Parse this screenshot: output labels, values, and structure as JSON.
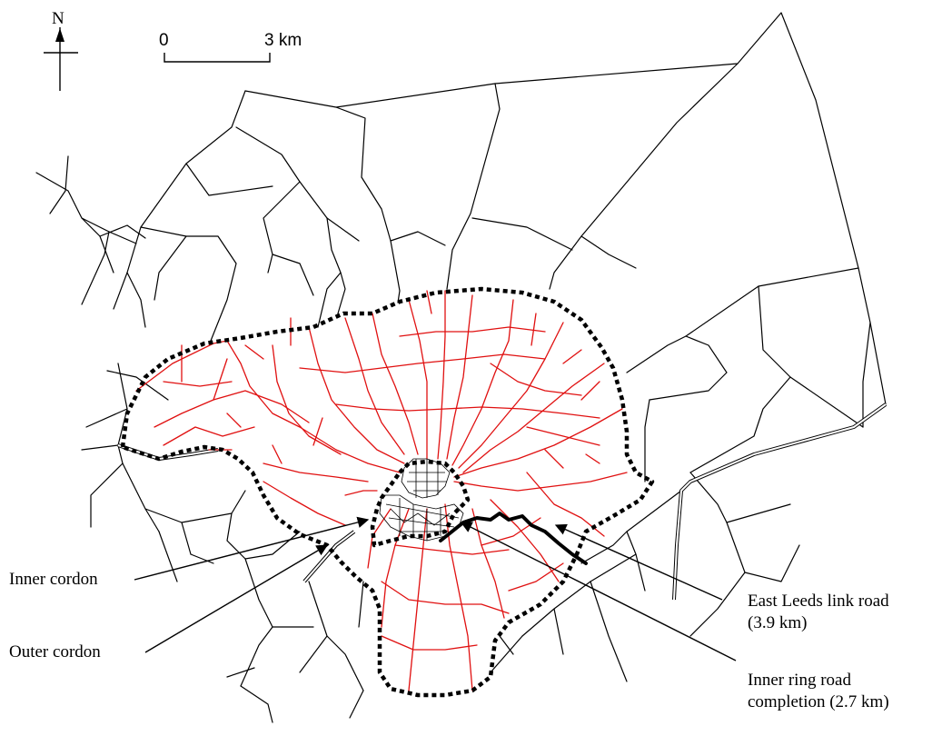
{
  "compass": {
    "label": "N"
  },
  "scale_bar": {
    "start_label": "0",
    "end_label": "3 km"
  },
  "labels": {
    "inner_cordon": "Inner cordon",
    "outer_cordon": "Outer cordon",
    "east_leeds_line1": "East Leeds link road",
    "east_leeds_line2": "(3.9 km)",
    "inner_ring_line1": "Inner ring road",
    "inner_ring_line2": "completion (2.7 km)"
  },
  "colors": {
    "outer_network": "#000000",
    "inner_network": "#e01010",
    "background": "#ffffff"
  }
}
